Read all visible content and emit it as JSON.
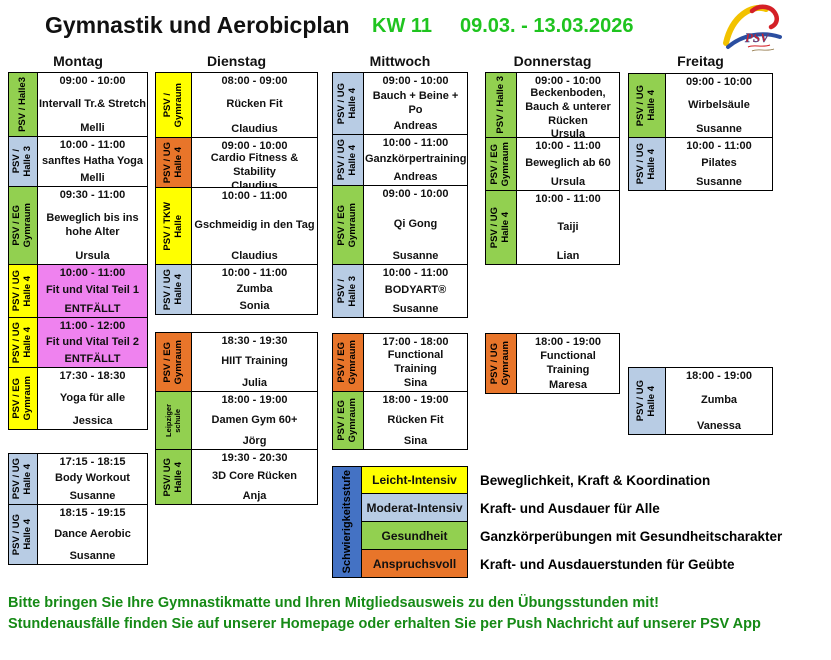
{
  "header": {
    "title": "Gymnastik und Aerobicplan",
    "week": "KW 11",
    "date_range": "09.03. - 13.03.2026",
    "logo_text": "PSV"
  },
  "colors": {
    "green": "#92d050",
    "blue": "#b8cce4",
    "yellow": "#ffff00",
    "orange": "#e8752a",
    "pink": "#ef82ef",
    "white": "#ffffff",
    "legend_bar_blue": "#4472c4",
    "accent_green": "#1fc41f",
    "notes_green": "#168a16"
  },
  "schedule": {
    "days": [
      {
        "name": "Montag",
        "cells": [
          {
            "location_lines": [
              "PSV / Halle3"
            ],
            "location_color": "green",
            "time": "09:00 - 10:00",
            "course": "Intervall Tr.& Stretch",
            "instructor": "Melli",
            "status": "",
            "body_color": "white"
          },
          {
            "location_lines": [
              "PSV /",
              "Halle 3"
            ],
            "location_color": "blue",
            "time": "10:00 - 11:00",
            "course": "sanftes Hatha Yoga",
            "instructor": "Melli",
            "status": "",
            "body_color": "white"
          },
          {
            "location_lines": [
              "PSV / EG",
              "Gymraum"
            ],
            "location_color": "green",
            "time": "09:30 - 11:00",
            "course": "Beweglich bis ins hohe Alter",
            "instructor": "Ursula",
            "status": "",
            "body_color": "white"
          },
          {
            "location_lines": [
              "PSV / UG",
              "Halle 4"
            ],
            "location_color": "yellow",
            "time": "10:00 - 11:00",
            "course": "Fit und Vital Teil 1",
            "instructor": "",
            "status": "ENTFÄLLT",
            "body_color": "pink"
          },
          {
            "location_lines": [
              "PSV / UG",
              "Halle 4"
            ],
            "location_color": "yellow",
            "time": "11:00 - 12:00",
            "course": "Fit und Vital Teil 2",
            "instructor": "",
            "status": "ENTFÄLLT",
            "body_color": "pink"
          },
          {
            "location_lines": [
              "PSV / EG",
              "Gymraum"
            ],
            "location_color": "yellow",
            "time": "17:30 - 18:30",
            "course": "Yoga für alle",
            "instructor": "Jessica",
            "status": "",
            "body_color": "white"
          },
          {
            "location_lines": [
              "PSV / UG",
              "Halle 4"
            ],
            "location_color": "blue",
            "time": "17:15 - 18:15",
            "course": "Body Workout",
            "instructor": "Susanne",
            "status": "",
            "body_color": "white"
          },
          {
            "location_lines": [
              "PSV / UG",
              "Halle 4"
            ],
            "location_color": "blue",
            "time": "18:15 - 19:15",
            "course": "Dance Aerobic",
            "instructor": "Susanne",
            "status": "",
            "body_color": "white"
          }
        ]
      },
      {
        "name": "Dienstag",
        "cells": [
          {
            "location_lines": [
              "PSV /",
              "Gymraum"
            ],
            "location_color": "yellow",
            "time": "08:00 - 09:00",
            "course": "Rücken Fit",
            "instructor": "Claudius",
            "status": "",
            "body_color": "white"
          },
          {
            "location_lines": [
              "PSV / UG",
              "Halle 4"
            ],
            "location_color": "orange",
            "time": "09:00 - 10:00",
            "course": "Cardio Fitness & Stability",
            "instructor": "Claudius",
            "status": "",
            "body_color": "white"
          },
          {
            "location_lines": [
              "PSV / TKW",
              "Halle"
            ],
            "location_color": "yellow",
            "time": "10:00 - 11:00",
            "course": "Gschmeidig in den Tag",
            "instructor": "Claudius",
            "status": "",
            "body_color": "white"
          },
          {
            "location_lines": [
              "PSV / UG",
              "Halle 4"
            ],
            "location_color": "blue",
            "time": "10:00 - 11:00",
            "course": "Zumba",
            "instructor": "Sonia",
            "status": "",
            "body_color": "white"
          },
          {
            "location_lines": [
              "PSV / EG",
              "Gymraum"
            ],
            "location_color": "orange",
            "time": "18:30 - 19:30",
            "course": "HIIT Training",
            "instructor": "Julia",
            "status": "",
            "body_color": "white"
          },
          {
            "location_lines": [
              "Leipziger",
              "schule"
            ],
            "location_color": "green",
            "small_label": true,
            "time": "18:00 - 19:00",
            "course": "Damen Gym 60+",
            "instructor": "Jörg",
            "status": "",
            "body_color": "white"
          },
          {
            "location_lines": [
              "PSV/ UG",
              "Halle 4"
            ],
            "location_color": "green",
            "time": "19:30 - 20:30",
            "course": "3D Core Rücken",
            "instructor": "Anja",
            "status": "",
            "body_color": "white"
          }
        ]
      },
      {
        "name": "Mittwoch",
        "cells": [
          {
            "location_lines": [
              "PSV / UG",
              "Halle 4"
            ],
            "location_color": "blue",
            "time": "09:00 - 10:00",
            "course": "Bauch + Beine + Po",
            "instructor": "Andreas",
            "status": "",
            "body_color": "white"
          },
          {
            "location_lines": [
              "PSV / UG",
              "Halle 4"
            ],
            "location_color": "blue",
            "time": "10:00 - 11:00",
            "course": "Ganzkörpertraining",
            "instructor": "Andreas",
            "status": "",
            "body_color": "white"
          },
          {
            "location_lines": [
              "PSV / EG",
              "Gymraum"
            ],
            "location_color": "green",
            "time": "09:00 - 10:00",
            "course": "Qi Gong",
            "instructor": "Susanne",
            "status": "",
            "body_color": "white"
          },
          {
            "location_lines": [
              "PSV /",
              "Halle 3"
            ],
            "location_color": "blue",
            "time": "10:00 - 11:00",
            "course": "BODYART®",
            "instructor": "Susanne",
            "status": "",
            "body_color": "white"
          },
          {
            "location_lines": [
              "PSV / EG",
              "Gymraum"
            ],
            "location_color": "orange",
            "time": "17:00 - 18:00",
            "course": "Functional Training",
            "instructor": "Sina",
            "status": "",
            "body_color": "white"
          },
          {
            "location_lines": [
              "PSV / EG",
              "Gymraum"
            ],
            "location_color": "green",
            "time": "18:00 - 19:00",
            "course": "Rücken Fit",
            "instructor": "Sina",
            "status": "",
            "body_color": "white"
          }
        ]
      },
      {
        "name": "Donnerstag",
        "cells": [
          {
            "location_lines": [
              "PSV / Halle 3"
            ],
            "location_color": "green",
            "time": "09:00 - 10:00",
            "course": "Beckenboden, Bauch & unterer Rücken",
            "instructor": "Ursula",
            "status": "",
            "body_color": "white"
          },
          {
            "location_lines": [
              "PSV / EG",
              "Gymraum"
            ],
            "location_color": "green",
            "time": "10:00 - 11:00",
            "course": "Beweglich ab 60",
            "instructor": "Ursula",
            "status": "",
            "body_color": "white"
          },
          {
            "location_lines": [
              "PSV / UG",
              "Halle 4"
            ],
            "location_color": "green",
            "time": "10:00 - 11:00",
            "course": "Taiji",
            "instructor": "Lian",
            "status": "",
            "body_color": "white"
          },
          {
            "location_lines": [
              "PSV / UG",
              "Gymraum"
            ],
            "location_color": "orange",
            "time": "18:00 - 19:00",
            "course": "Functional Training",
            "instructor": "Maresa",
            "status": "",
            "body_color": "white"
          }
        ]
      },
      {
        "name": "Freitag",
        "cells": [
          {
            "location_lines": [
              "PSV / UG",
              "Halle 4"
            ],
            "location_color": "green",
            "time": "09:00 - 10:00",
            "course": "Wirbelsäule",
            "instructor": "Susanne",
            "status": "",
            "body_color": "white"
          },
          {
            "location_lines": [
              "PSV / UG",
              "Halle 4"
            ],
            "location_color": "blue",
            "time": "10:00 - 11:00",
            "course": "Pilates",
            "instructor": "Susanne",
            "status": "",
            "body_color": "white"
          },
          {
            "location_lines": [
              "PSV / UG",
              "Halle 4"
            ],
            "location_color": "blue",
            "time": "18:00 - 19:00",
            "course": "Zumba",
            "instructor": "Vanessa",
            "status": "",
            "body_color": "white"
          }
        ]
      }
    ]
  },
  "legend": {
    "axis_label": "Schwierigkeitsstufe",
    "items": [
      {
        "label": "Leicht-Intensiv",
        "color": "yellow",
        "description": "Beweglichkeit, Kraft & Koordination"
      },
      {
        "label": "Moderat-Intensiv",
        "color": "blue",
        "description": "Kraft- und Ausdauer für Alle"
      },
      {
        "label": "Gesundheit",
        "color": "green",
        "description": "Ganzkörperübungen mit Gesundheitscharakter"
      },
      {
        "label": "Anspruchsvoll",
        "color": "orange",
        "description": "Kraft- und Ausdauerstunden für Geübte"
      }
    ]
  },
  "notes": [
    "Bitte bringen Sie Ihre Gymnastikmatte und Ihren Mitgliedsausweis zu den Übungsstunden mit!",
    "Stundenausfälle finden Sie auf unserer Homepage oder erhalten Sie per Push Nachricht auf unserer PSV App"
  ]
}
